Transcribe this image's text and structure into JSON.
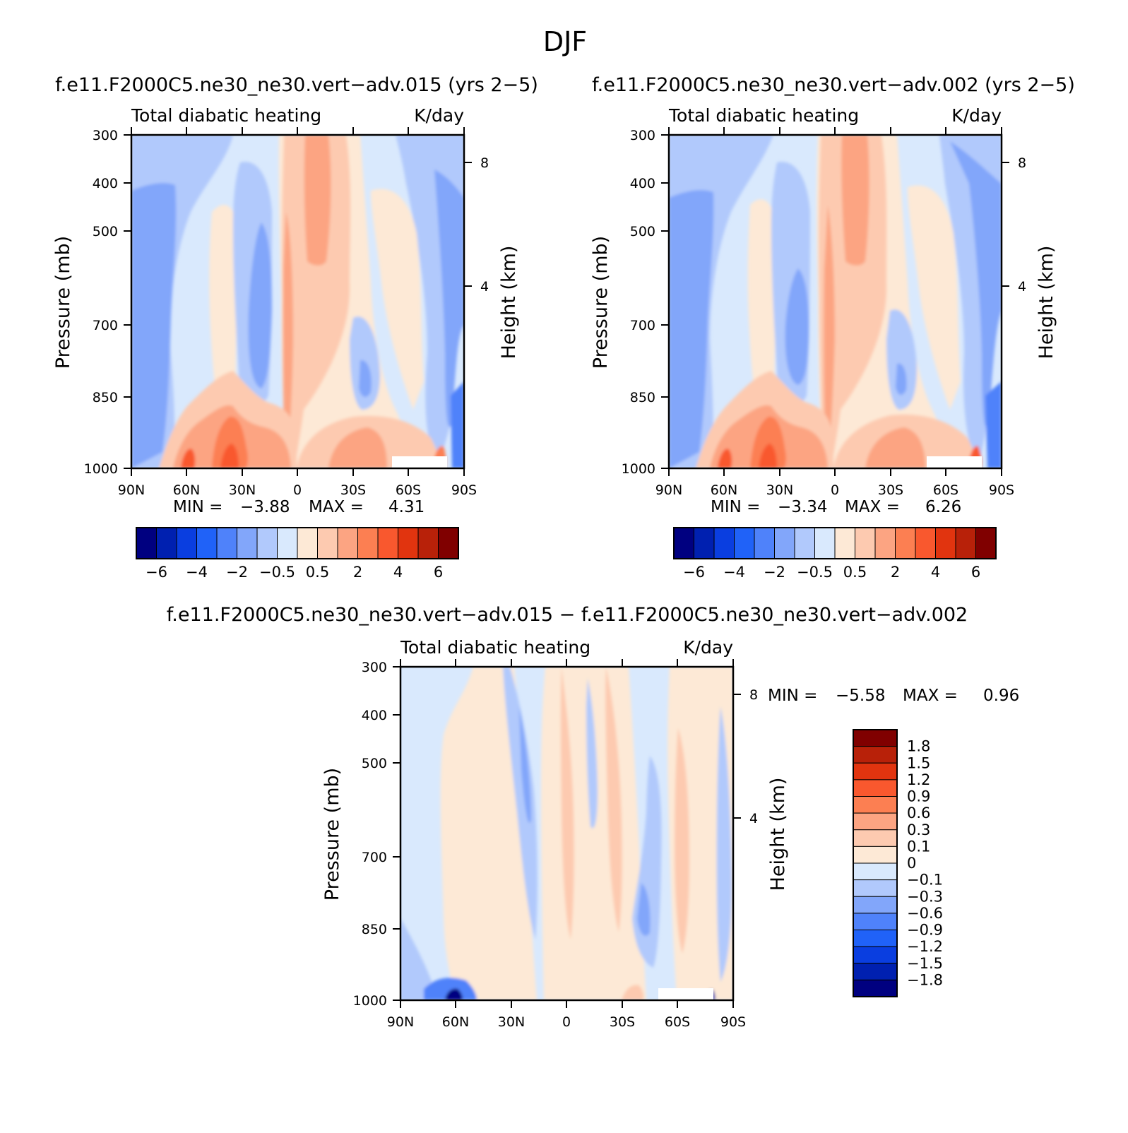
{
  "figure": {
    "title": "DJF"
  },
  "colors": {
    "diverging_18": [
      "#000080",
      "#0020b0",
      "#0a3ee0",
      "#2062f8",
      "#4f82fa",
      "#82a6fa",
      "#b1c9fc",
      "#d9e9fd",
      "#fde9d6",
      "#fdcab0",
      "#fca482",
      "#fc7f52",
      "#f9582e",
      "#e1340f",
      "#b82109",
      "#800000"
    ],
    "diff_20": [
      "#000080",
      "#0020b0",
      "#0a3ee0",
      "#2062f8",
      "#4f82fa",
      "#82a6fa",
      "#b1c9fc",
      "#d9e9fd",
      "#fde9d6",
      "#fdcab0",
      "#fca482",
      "#fc7f52",
      "#f9582e",
      "#e1340f",
      "#b82109",
      "#800000"
    ]
  },
  "panels": [
    {
      "title": "f.e11.F2000C5.ne30_ne30.vert−adv.015 (yrs 2−5)",
      "left_label": "Total diabatic heating",
      "right_label": "K/day",
      "ylabel": "Pressure (mb)",
      "ylabel2": "Height (km)",
      "stats": {
        "min_label": "MIN =",
        "min": "−3.88",
        "max_label": "MAX =",
        "max": "4.31"
      }
    },
    {
      "title": "f.e11.F2000C5.ne30_ne30.vert−adv.002 (yrs 2−5)",
      "left_label": "Total diabatic heating",
      "right_label": "K/day",
      "ylabel": "Pressure (mb)",
      "ylabel2": "Height (km)",
      "stats": {
        "min_label": "MIN =",
        "min": "−3.34",
        "max_label": "MAX =",
        "max": "6.26"
      }
    },
    {
      "title": "f.e11.F2000C5.ne30_ne30.vert−adv.015 − f.e11.F2000C5.ne30_ne30.vert−adv.002",
      "left_label": "Total diabatic heating",
      "right_label": "K/day",
      "ylabel": "Pressure (mb)",
      "ylabel2": "Height (km)",
      "stats": {
        "min_label": "MIN =",
        "min": "−5.58",
        "max_label": "MAX =",
        "max": "0.96"
      }
    }
  ],
  "colorbar_main": {
    "labels": [
      "−6",
      "−4",
      "−2",
      "−0.5",
      "0.5",
      "2",
      "4",
      "6"
    ]
  },
  "colorbar_diff": {
    "labels": [
      "1.8",
      "1.5",
      "1.2",
      "0.9",
      "0.6",
      "0.3",
      "0.1",
      "0",
      "−0.1",
      "−0.3",
      "−0.6",
      "−0.9",
      "−1.2",
      "−1.5",
      "−1.8"
    ]
  },
  "chart_data": [
    {
      "type": "heatmap",
      "title": "f.e11.F2000C5.ne30_ne30.vert−adv.015 (yrs 2−5)",
      "subtitle_left": "Total diabatic heating",
      "units": "K/day",
      "xlabel": "",
      "ylabel": "Pressure (mb)",
      "ylabel_right": "Height (km)",
      "x_ticks": [
        "90N",
        "60N",
        "30N",
        "0",
        "30S",
        "60S",
        "90S"
      ],
      "x_range": [
        90,
        -90
      ],
      "y_ticks": [
        300,
        400,
        500,
        700,
        850,
        1000
      ],
      "y_range": [
        1000,
        300
      ],
      "y_scale": "log",
      "y2_ticks": [
        4,
        8
      ],
      "levels": [
        -6,
        -5,
        -4,
        -3,
        -2,
        -1,
        -0.5,
        0,
        0.5,
        1,
        2,
        3,
        4,
        5,
        6
      ],
      "min": -3.88,
      "max": 4.31,
      "features": [
        {
          "lat": -5,
          "p": 300,
          "sign": "+",
          "value": 2
        },
        {
          "lat": -8,
          "p": 450,
          "sign": "+",
          "value": 2
        },
        {
          "lat": 0,
          "p": 700,
          "sign": "+",
          "value": 1
        },
        {
          "lat": 38,
          "p": 920,
          "sign": "+",
          "value": 3
        },
        {
          "lat": 48,
          "p": 960,
          "sign": "+",
          "value": 2
        },
        {
          "lat": 62,
          "p": 980,
          "sign": "+",
          "value": 3
        },
        {
          "lat": -28,
          "p": 950,
          "sign": "+",
          "value": 2
        },
        {
          "lat": 30,
          "p": 520,
          "sign": "+",
          "value": 0.5
        },
        {
          "lat": -45,
          "p": 480,
          "sign": "+",
          "value": 0.5
        },
        {
          "lat": 18,
          "p": 650,
          "sign": "-",
          "value": -2
        },
        {
          "lat": -30,
          "p": 800,
          "sign": "-",
          "value": -2
        },
        {
          "lat": 82,
          "p": 450,
          "sign": "-",
          "value": -2
        },
        {
          "lat": 65,
          "p": 550,
          "sign": "-",
          "value": -1
        },
        {
          "lat": -85,
          "p": 500,
          "sign": "-",
          "value": -1
        }
      ]
    },
    {
      "type": "heatmap",
      "title": "f.e11.F2000C5.ne30_ne30.vert−adv.002 (yrs 2−5)",
      "subtitle_left": "Total diabatic heating",
      "units": "K/day",
      "xlabel": "",
      "ylabel": "Pressure (mb)",
      "ylabel_right": "Height (km)",
      "x_ticks": [
        "90N",
        "60N",
        "30N",
        "0",
        "30S",
        "60S",
        "90S"
      ],
      "x_range": [
        90,
        -90
      ],
      "y_ticks": [
        300,
        400,
        500,
        700,
        850,
        1000
      ],
      "y_range": [
        1000,
        300
      ],
      "y_scale": "log",
      "y2_ticks": [
        4,
        8
      ],
      "levels": [
        -6,
        -5,
        -4,
        -3,
        -2,
        -1,
        -0.5,
        0,
        0.5,
        1,
        2,
        3,
        4,
        5,
        6
      ],
      "min": -3.34,
      "max": 6.26,
      "features": [
        {
          "lat": -8,
          "p": 320,
          "sign": "+",
          "value": 2
        },
        {
          "lat": -10,
          "p": 450,
          "sign": "+",
          "value": 2
        },
        {
          "lat": 3,
          "p": 650,
          "sign": "+",
          "value": 1
        },
        {
          "lat": 40,
          "p": 930,
          "sign": "+",
          "value": 3
        },
        {
          "lat": 55,
          "p": 970,
          "sign": "+",
          "value": 3
        },
        {
          "lat": -25,
          "p": 950,
          "sign": "+",
          "value": 2
        },
        {
          "lat": 33,
          "p": 500,
          "sign": "+",
          "value": 0.5
        },
        {
          "lat": -45,
          "p": 480,
          "sign": "+",
          "value": 0.5
        },
        {
          "lat": 20,
          "p": 650,
          "sign": "-",
          "value": -2
        },
        {
          "lat": -33,
          "p": 780,
          "sign": "-",
          "value": -2
        },
        {
          "lat": 82,
          "p": 450,
          "sign": "-",
          "value": -2
        },
        {
          "lat": -85,
          "p": 500,
          "sign": "-",
          "value": -1
        }
      ]
    },
    {
      "type": "heatmap",
      "title": "f.e11.F2000C5.ne30_ne30.vert−adv.015 − f.e11.F2000C5.ne30_ne30.vert−adv.002",
      "subtitle_left": "Total diabatic heating",
      "units": "K/day",
      "xlabel": "",
      "ylabel": "Pressure (mb)",
      "ylabel_right": "Height (km)",
      "x_ticks": [
        "90N",
        "60N",
        "30N",
        "0",
        "30S",
        "60S",
        "90S"
      ],
      "x_range": [
        90,
        -90
      ],
      "y_ticks": [
        300,
        400,
        500,
        700,
        850,
        1000
      ],
      "y_range": [
        1000,
        300
      ],
      "y_scale": "log",
      "y2_ticks": [
        4,
        8
      ],
      "levels": [
        -1.8,
        -1.5,
        -1.2,
        -0.9,
        -0.6,
        -0.3,
        -0.1,
        0,
        0.1,
        0.3,
        0.6,
        0.9,
        1.2,
        1.5,
        1.8
      ],
      "min": -5.58,
      "max": 0.96,
      "features": [
        {
          "lat": 45,
          "p": 600,
          "sign": "+",
          "value": 0.1
        },
        {
          "lat": -50,
          "p": 600,
          "sign": "+",
          "value": 0.1
        },
        {
          "lat": 10,
          "p": 550,
          "sign": "+",
          "value": 0.3
        },
        {
          "lat": -18,
          "p": 500,
          "sign": "+",
          "value": 0.3
        },
        {
          "lat": -65,
          "p": 750,
          "sign": "+",
          "value": 0.3
        },
        {
          "lat": 22,
          "p": 450,
          "sign": "-",
          "value": -0.1
        },
        {
          "lat": -48,
          "p": 800,
          "sign": "-",
          "value": -0.3
        },
        {
          "lat": 30,
          "p": 600,
          "sign": "-",
          "value": -0.3
        },
        {
          "lat": 62,
          "p": 990,
          "sign": "-",
          "value": -1.8
        }
      ]
    }
  ]
}
